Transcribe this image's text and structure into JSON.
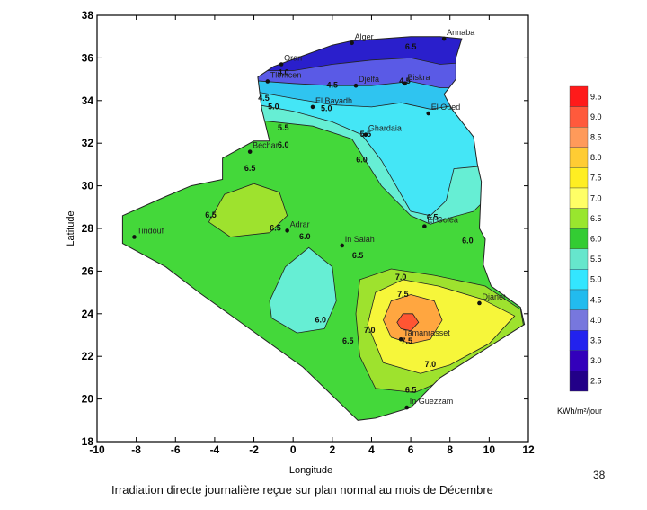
{
  "map": {
    "x_axis": {
      "title": "Longitude",
      "ticks": [
        "-10",
        "-8",
        "-6",
        "-4",
        "-2",
        "0",
        "2",
        "4",
        "6",
        "8",
        "10",
        "12"
      ],
      "range": [
        -10,
        12
      ]
    },
    "y_axis": {
      "title": "Latitude",
      "ticks": [
        "18",
        "20",
        "22",
        "24",
        "26",
        "28",
        "30",
        "32",
        "34",
        "36",
        "38"
      ],
      "range": [
        18,
        38
      ]
    },
    "cities": [
      {
        "name": "Alger",
        "lon": 3.0,
        "lat": 36.7
      },
      {
        "name": "Annaba",
        "lon": 7.7,
        "lat": 36.9
      },
      {
        "name": "Oran",
        "lon": -0.6,
        "lat": 35.7
      },
      {
        "name": "Tlemcen",
        "lon": -1.3,
        "lat": 34.9
      },
      {
        "name": "Djelfa",
        "lon": 3.2,
        "lat": 34.7
      },
      {
        "name": "Biskra",
        "lon": 5.7,
        "lat": 34.8
      },
      {
        "name": "El Bayadh",
        "lon": 1.0,
        "lat": 33.7
      },
      {
        "name": "El Oued",
        "lon": 6.9,
        "lat": 33.4
      },
      {
        "name": "Ghardaia",
        "lon": 3.7,
        "lat": 32.4
      },
      {
        "name": "Bechar",
        "lon": -2.2,
        "lat": 31.6
      },
      {
        "name": "Tindouf",
        "lon": -8.1,
        "lat": 27.6
      },
      {
        "name": "Adrar",
        "lon": -0.3,
        "lat": 27.9
      },
      {
        "name": "In Salah",
        "lon": 2.5,
        "lat": 27.2
      },
      {
        "name": "El Golea",
        "lon": 6.7,
        "lat": 28.1
      },
      {
        "name": "Djanet",
        "lon": 9.5,
        "lat": 24.5
      },
      {
        "name": "Tamanrasset",
        "lon": 5.5,
        "lat": 22.8
      },
      {
        "name": "In Guezzam",
        "lon": 5.8,
        "lat": 19.6
      }
    ],
    "contour_labels": [
      {
        "text": "6.5",
        "lon": 6.0,
        "lat": 36.4
      },
      {
        "text": "4.0",
        "lon": -0.5,
        "lat": 35.2
      },
      {
        "text": "4.5",
        "lon": -1.5,
        "lat": 34.0
      },
      {
        "text": "4.5",
        "lon": 2.0,
        "lat": 34.6
      },
      {
        "text": "4.5",
        "lon": 5.7,
        "lat": 34.8
      },
      {
        "text": "5.0",
        "lon": -1.0,
        "lat": 33.6
      },
      {
        "text": "5.0",
        "lon": 1.7,
        "lat": 33.5
      },
      {
        "text": "5.5",
        "lon": -0.5,
        "lat": 32.6
      },
      {
        "text": "5.5",
        "lon": 3.7,
        "lat": 32.3
      },
      {
        "text": "6.0",
        "lon": -0.5,
        "lat": 31.8
      },
      {
        "text": "6.0",
        "lon": 3.5,
        "lat": 31.1
      },
      {
        "text": "6.5",
        "lon": -2.2,
        "lat": 30.7
      },
      {
        "text": "6.5",
        "lon": -4.2,
        "lat": 28.5
      },
      {
        "text": "6.5",
        "lon": -0.9,
        "lat": 27.9
      },
      {
        "text": "6.0",
        "lon": 0.6,
        "lat": 27.5
      },
      {
        "text": "6.5",
        "lon": 7.1,
        "lat": 28.4
      },
      {
        "text": "6.0",
        "lon": 8.9,
        "lat": 27.3
      },
      {
        "text": "6.5",
        "lon": 3.3,
        "lat": 26.6
      },
      {
        "text": "7.0",
        "lon": 5.5,
        "lat": 25.6
      },
      {
        "text": "7.5",
        "lon": 5.6,
        "lat": 24.8
      },
      {
        "text": "7.0",
        "lon": 3.9,
        "lat": 23.1
      },
      {
        "text": "7.5",
        "lon": 5.8,
        "lat": 22.6
      },
      {
        "text": "7.0",
        "lon": 7.0,
        "lat": 21.5
      },
      {
        "text": "6.5",
        "lon": 6.0,
        "lat": 20.3
      },
      {
        "text": "6.5",
        "lon": 2.8,
        "lat": 22.6
      },
      {
        "text": "6.0",
        "lon": 1.4,
        "lat": 23.6
      }
    ],
    "colorbar": {
      "levels": [
        "9.5",
        "9.0",
        "8.5",
        "8.0",
        "7.5",
        "7.0",
        "6.5",
        "6.0",
        "5.5",
        "5.0",
        "4.5",
        "4.0",
        "3.5",
        "3.0",
        "2.5"
      ],
      "colors": [
        "#ff1a1a",
        "#ff5a3c",
        "#ff9a5a",
        "#ffcc33",
        "#ffee22",
        "#ffff66",
        "#99e62e",
        "#33cc33",
        "#66e6cc",
        "#33e6ff",
        "#22bbee",
        "#7777dd",
        "#2222ee",
        "#3300bb",
        "#220088"
      ],
      "unit": "KWh/m²/jour"
    },
    "zone_colors": {
      "border": "#000000",
      "deep_blue": "#2a1fcc",
      "blue": "#5a5ae6",
      "light_blue": "#2fc4f0",
      "cyan": "#44e6f6",
      "aqua": "#66eed4",
      "green": "#44d83a",
      "yellow_green": "#9ee22e",
      "yellow": "#f6f63a",
      "orange": "#ffa640",
      "red": "#ff5533"
    }
  },
  "caption": "Irradiation directe journalière reçue sur plan normal au mois de Décembre",
  "page_number": "38"
}
